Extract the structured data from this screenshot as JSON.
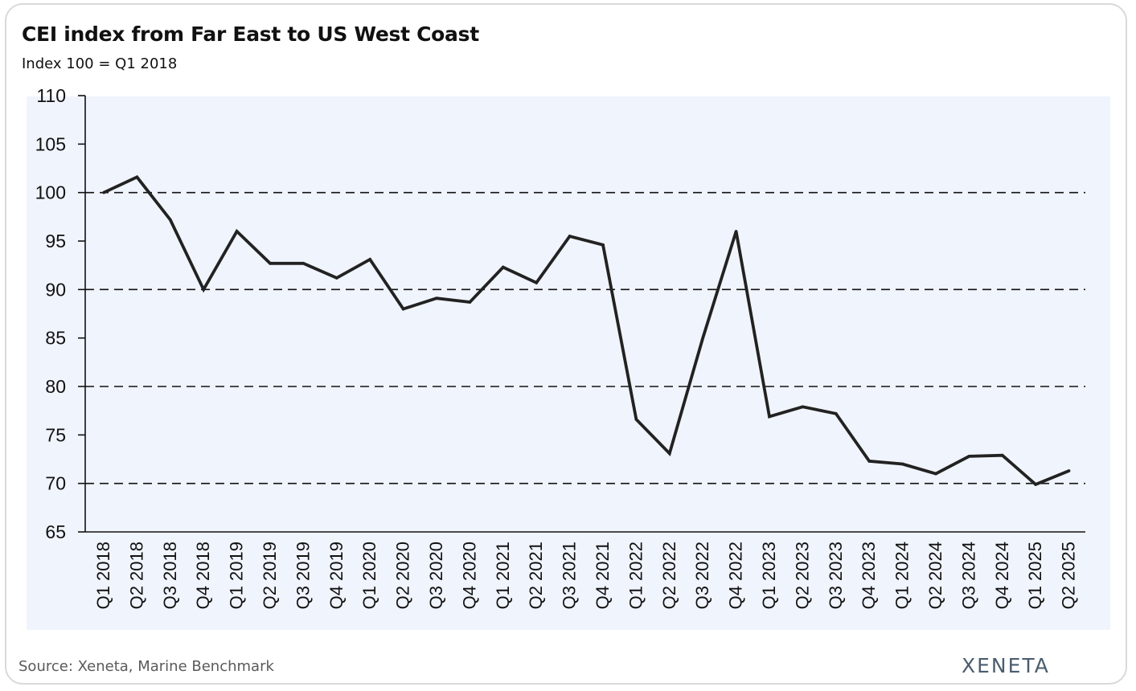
{
  "title": "CEI index from Far East to US West Coast",
  "subtitle": "Index 100 = Q1 2018",
  "source": "Source: Xeneta, Marine Benchmark",
  "brand": "XENETA",
  "colors": {
    "plot_background": "#f0f4fc",
    "line": "#222222",
    "gridline": "#111111",
    "text": "#111111",
    "brand": "#4b5d6e"
  },
  "chart_data": {
    "type": "line",
    "title": "CEI index from Far East to US West Coast",
    "subtitle": "Index 100 = Q1 2018",
    "xlabel": "",
    "ylabel": "",
    "ylim": [
      65,
      110
    ],
    "yticks": [
      65,
      70,
      75,
      80,
      85,
      90,
      95,
      100,
      105,
      110
    ],
    "gridlines_at": [
      70,
      80,
      90,
      100
    ],
    "grid_style": "dashed horizontal",
    "legend": "none",
    "categories": [
      "Q1 2018",
      "Q2 2018",
      "Q3 2018",
      "Q4 2018",
      "Q1 2019",
      "Q2 2019",
      "Q3 2019",
      "Q4 2019",
      "Q1 2020",
      "Q2 2020",
      "Q3 2020",
      "Q4 2020",
      "Q1 2021",
      "Q2 2021",
      "Q3 2021",
      "Q4 2021",
      "Q1 2022",
      "Q2 2022",
      "Q3 2022",
      "Q4 2022",
      "Q1 2023",
      "Q2 2023",
      "Q3 2023",
      "Q4 2023",
      "Q1 2024",
      "Q2 2024",
      "Q3 2024",
      "Q4 2024",
      "Q1 2025",
      "Q2 2025"
    ],
    "series": [
      {
        "values": [
          100,
          101.6,
          97.2,
          90.0,
          96.0,
          92.7,
          92.7,
          91.2,
          93.1,
          88.0,
          89.1,
          88.7,
          92.3,
          90.7,
          95.5,
          94.6,
          76.6,
          73.1,
          85.0,
          96.0,
          76.9,
          77.9,
          77.2,
          72.3,
          72.0,
          71.0,
          72.8,
          72.9,
          69.9,
          71.3
        ]
      }
    ]
  }
}
